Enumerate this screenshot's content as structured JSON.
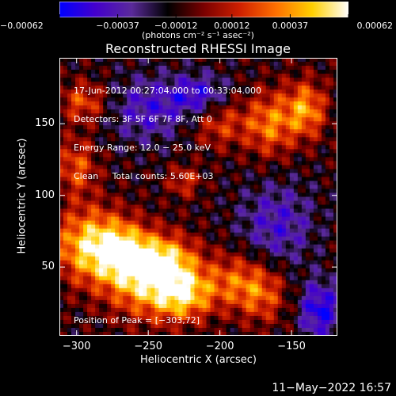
{
  "chart_data": {
    "type": "heatmap",
    "title": "Reconstructed RHESSI Image",
    "xlabel": "Heliocentric X (arcsec)",
    "ylabel": "Heliocentric Y (arcsec)",
    "xlim": [
      -312,
      -118
    ],
    "ylim": [
      2,
      196
    ],
    "xticks": [
      {
        "value": -300,
        "label": "−300"
      },
      {
        "value": -250,
        "label": "−250"
      },
      {
        "value": -200,
        "label": "−200"
      },
      {
        "value": -150,
        "label": "−150"
      }
    ],
    "yticks": [
      {
        "value": 50,
        "label": "50"
      },
      {
        "value": 100,
        "label": "100"
      },
      {
        "value": 150,
        "label": "150"
      }
    ],
    "colorbar": {
      "range": [
        -0.00062,
        0.00062
      ],
      "ticks": [
        {
          "value": -0.00062,
          "label": "−0.00062"
        },
        {
          "value": -0.00037,
          "label": "−0.00037"
        },
        {
          "value": -0.00012,
          "label": "−0.00012"
        },
        {
          "value": 0.00012,
          "label": "0.00012"
        },
        {
          "value": 0.00037,
          "label": "0.00037"
        },
        {
          "value": 0.00062,
          "label": "0.00062"
        }
      ],
      "units": "(photons cm⁻² s⁻¹ asec⁻²)",
      "colormap": [
        "#0000ff",
        "#4400cc",
        "#5a2a9a",
        "#000000",
        "#7a0000",
        "#d02000",
        "#ff7000",
        "#ffd000",
        "#ffffff"
      ]
    },
    "annotations": [
      "17-Jun-2012 00:27:04.000 to 00:33:04.000",
      "Detectors: 3F 5F 6F 7F 8F, Att 0",
      "Energy Range: 12.0 − 25.0 keV",
      "Clean     Total counts: 5.60E+03"
    ],
    "peak_label": "Position of Peak = [−303,72]",
    "peak": {
      "x": -303,
      "y": 72
    },
    "sources": [
      {
        "x": -290,
        "y": 65,
        "peak": 0.00062,
        "sx": 18,
        "sy": 18
      },
      {
        "x": -250,
        "y": 40,
        "peak": 0.00055,
        "sx": 20,
        "sy": 18
      },
      {
        "x": -225,
        "y": 30,
        "peak": 0.00048,
        "sx": 14,
        "sy": 12
      },
      {
        "x": -265,
        "y": 60,
        "peak": 0.00045,
        "sx": 14,
        "sy": 14
      },
      {
        "x": -235,
        "y": 55,
        "peak": 0.0004,
        "sx": 14,
        "sy": 12
      },
      {
        "x": -300,
        "y": 120,
        "peak": 0.00035,
        "sx": 10,
        "sy": 14
      },
      {
        "x": -295,
        "y": 165,
        "peak": 0.00035,
        "sx": 12,
        "sy": 10
      },
      {
        "x": -200,
        "y": 150,
        "peak": 0.0003,
        "sx": 14,
        "sy": 12
      },
      {
        "x": -190,
        "y": 40,
        "peak": 0.00035,
        "sx": 16,
        "sy": 14
      },
      {
        "x": -165,
        "y": 150,
        "peak": 0.00042,
        "sx": 12,
        "sy": 16
      },
      {
        "x": -140,
        "y": 160,
        "peak": 0.00048,
        "sx": 10,
        "sy": 14
      },
      {
        "x": -225,
        "y": 110,
        "peak": 0.00028,
        "sx": 8,
        "sy": 8
      },
      {
        "x": -170,
        "y": 30,
        "peak": 0.0003,
        "sx": 12,
        "sy": 14
      },
      {
        "x": -160,
        "y": 80,
        "peak": -0.0003,
        "sx": 18,
        "sy": 20
      },
      {
        "x": -250,
        "y": 160,
        "peak": -0.0003,
        "sx": 20,
        "sy": 16
      },
      {
        "x": -215,
        "y": 170,
        "peak": -0.00035,
        "sx": 14,
        "sy": 10
      },
      {
        "x": -130,
        "y": 20,
        "peak": -0.00045,
        "sx": 10,
        "sy": 14
      }
    ]
  },
  "timestamp": "11−May−2022 16:57"
}
